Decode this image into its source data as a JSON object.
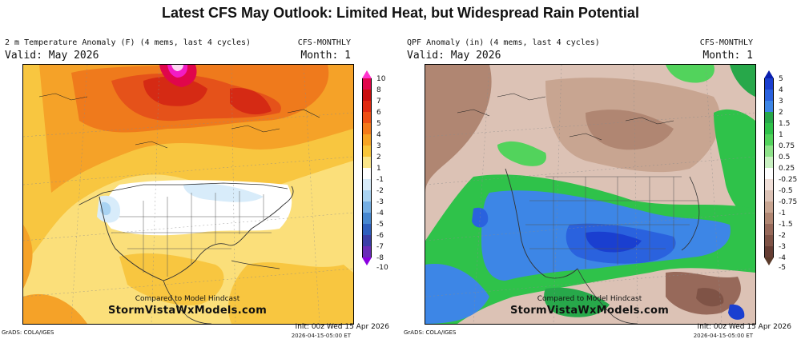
{
  "title": "Latest CFS May Outlook: Limited Heat, but Widespread Rain Potential",
  "panels": [
    {
      "header_title": "2 m Temperature Anomaly (F) (4 mems, last 4 cycles)",
      "valid": "Valid: May 2026",
      "model": "CFS-MONTHLY",
      "month": "Month: 1",
      "hindcast": "Compared to Model Hindcast",
      "site": "StormVistaWxModels.com",
      "grads": "GrADS: COLA/IGES",
      "init": "Init: 00z Wed 15 Apr 2026",
      "stamp": "2026-04-15-05:00 ET",
      "colorbar": {
        "labels": [
          "10",
          "8",
          "7",
          "6",
          "5",
          "4",
          "3",
          "2",
          "1",
          "-1",
          "-2",
          "-3",
          "-4",
          "-5",
          "-6",
          "-7",
          "-8",
          "-10"
        ],
        "colors": [
          "#f21cc4",
          "#e0064b",
          "#c90e0e",
          "#e02a10",
          "#ee4f14",
          "#f47a1a",
          "#f7a424",
          "#f9c63a",
          "#fbe68a",
          "#ffffff",
          "#d8ecfa",
          "#a9d3f2",
          "#74aee4",
          "#4687d0",
          "#2e5fbe",
          "#3b3ea8",
          "#6a2cb8",
          "#a020d8"
        ],
        "top_tri": "#ff33cc",
        "bottom_tri": "#8a00e0"
      }
    },
    {
      "header_title": "QPF Anomaly (in) (4 mems, last 4 cycles)",
      "valid": "Valid: May 2026",
      "model": "CFS-MONTHLY",
      "month": "Month: 1",
      "hindcast": "Compared to Model Hindcast",
      "site": "StormVistaWxModels.com",
      "grads": "GrADS: COLA/IGES",
      "init": "Init: 00z Wed 15 Apr 2026",
      "stamp": "2026-04-15-05:00 ET",
      "colorbar": {
        "labels": [
          "5",
          "4",
          "3",
          "2",
          "1.5",
          "1",
          "0.75",
          "0.5",
          "0.25",
          "-0.25",
          "-0.5",
          "-0.75",
          "-1",
          "-1.5",
          "-2",
          "-3",
          "-4",
          "-5"
        ],
        "colors": [
          "#0a1fae",
          "#1a3fd0",
          "#2a62de",
          "#3d86e6",
          "#27a84a",
          "#2fc24a",
          "#52d35c",
          "#8ee38a",
          "#c9f1c2",
          "#ffffff",
          "#f0dfd8",
          "#dcc2b5",
          "#c8a591",
          "#b08672",
          "#97695a",
          "#7f5346",
          "#663d33",
          "#4e2b24"
        ],
        "top_tri": "#0a1fae",
        "bottom_tri": "#5a3a2a"
      }
    }
  ]
}
